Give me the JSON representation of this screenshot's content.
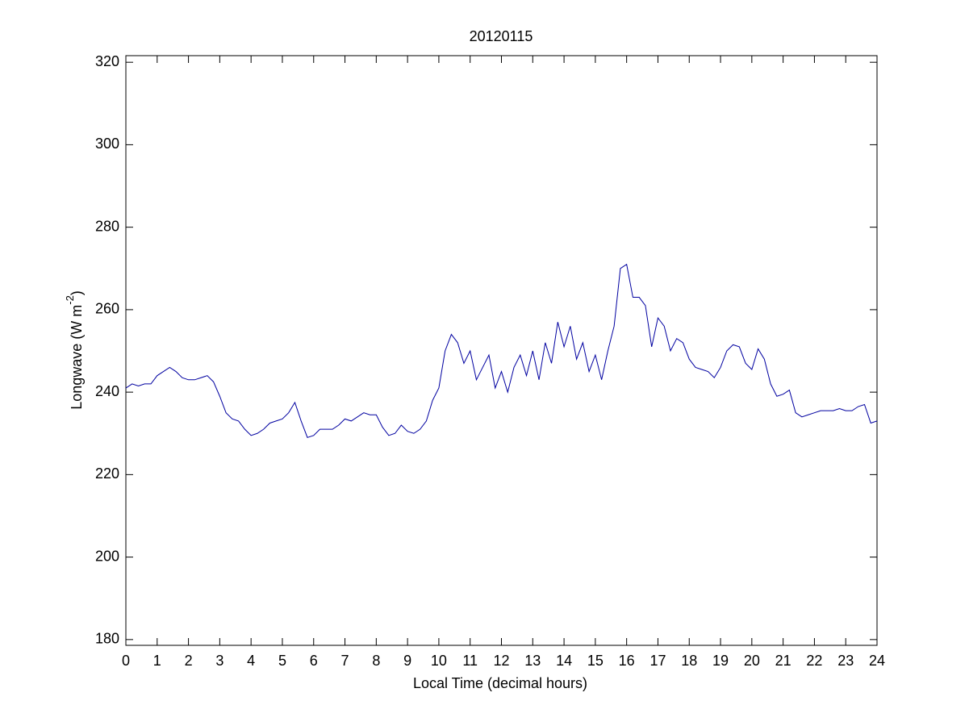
{
  "chart_data": {
    "type": "line",
    "title": "20120115",
    "x_label": "Local Time (decimal hours)",
    "y_label": {
      "text": "Longwave (W m",
      "sup": "-2",
      "end": ")"
    },
    "color": "#0000a0",
    "x": [
      0,
      0.2,
      0.4,
      0.6,
      0.8,
      1,
      1.2,
      1.4,
      1.6,
      1.8,
      2,
      2.2,
      2.4,
      2.6,
      2.8,
      3,
      3.2,
      3.4,
      3.6,
      3.8,
      4,
      4.2,
      4.4,
      4.6,
      4.8,
      5,
      5.2,
      5.4,
      5.6,
      5.8,
      6,
      6.2,
      6.4,
      6.6,
      6.8,
      7,
      7.2,
      7.4,
      7.6,
      7.8,
      8,
      8.2,
      8.4,
      8.6,
      8.8,
      9,
      9.2,
      9.4,
      9.6,
      9.8,
      10,
      10.2,
      10.4,
      10.6,
      10.8,
      11,
      11.2,
      11.4,
      11.6,
      11.8,
      12,
      12.2,
      12.4,
      12.6,
      12.8,
      13,
      13.2,
      13.4,
      13.6,
      13.8,
      14,
      14.2,
      14.4,
      14.6,
      14.8,
      15,
      15.2,
      15.4,
      15.6,
      15.8,
      16,
      16.2,
      16.4,
      16.6,
      16.8,
      17,
      17.2,
      17.4,
      17.6,
      17.8,
      18,
      18.2,
      18.4,
      18.6,
      18.8,
      19,
      19.2,
      19.4,
      19.6,
      19.8,
      20,
      20.2,
      20.4,
      20.6,
      20.8,
      21,
      21.2,
      21.4,
      21.6,
      21.8,
      22,
      22.2,
      22.4,
      22.6,
      22.8,
      23,
      23.2,
      23.4,
      23.6,
      23.8,
      24
    ],
    "values": [
      241,
      242,
      241.5,
      242,
      242,
      244,
      245,
      246,
      245,
      243.5,
      243,
      243,
      243.5,
      244,
      242.5,
      239,
      235,
      233.5,
      233,
      231,
      229.5,
      230,
      231,
      232.5,
      233,
      233.5,
      235,
      237.5,
      233,
      229,
      229.5,
      231,
      231,
      231,
      232,
      233.5,
      233,
      234,
      235,
      234.5,
      234.5,
      231.5,
      229.5,
      230,
      232,
      230.5,
      230,
      231,
      233,
      238,
      241,
      250,
      254,
      252,
      247,
      250,
      243,
      246,
      249,
      241,
      245,
      240,
      246,
      249,
      244,
      250,
      243,
      252,
      247,
      257,
      251,
      256,
      248,
      252,
      245,
      249,
      243,
      250,
      256,
      270,
      271,
      263,
      263,
      261,
      251,
      258,
      256,
      250,
      253,
      252,
      248,
      246,
      245.5,
      245,
      243.5,
      246,
      250,
      251.5,
      251,
      247,
      245.5,
      250.5,
      248,
      242,
      239,
      239.5,
      240.5,
      235,
      234,
      234.5,
      235,
      235.5,
      235.5,
      235.5,
      236,
      235.5,
      235.5,
      236.5,
      237,
      232.5,
      233
    ],
    "xlim": [
      0,
      24
    ],
    "xticks": [
      0,
      1,
      2,
      3,
      4,
      5,
      6,
      7,
      8,
      9,
      10,
      11,
      12,
      13,
      14,
      15,
      16,
      17,
      18,
      19,
      20,
      21,
      22,
      23,
      24
    ],
    "ylim": [
      178.6,
      321.6
    ],
    "yticks": [
      180,
      200,
      220,
      240,
      260,
      280,
      300,
      320
    ]
  }
}
